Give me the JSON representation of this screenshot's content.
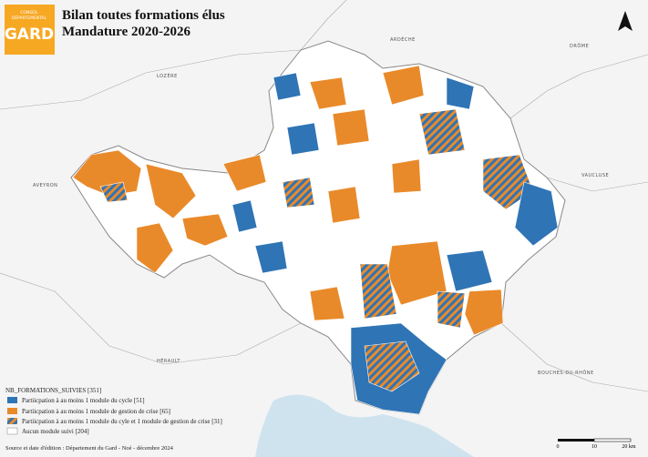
{
  "header": {
    "logo_line1": "CONSEIL",
    "logo_line2": "DÉPARTEMENTAL",
    "logo_name": "GARD",
    "title_line1": "Bilan toutes formations élus",
    "title_line2": "Mandature 2020-2026"
  },
  "neighbors": [
    "ARDÈCHE",
    "DRÔME",
    "LOZÈRE",
    "AVEYRON",
    "VAUCLUSE",
    "HÉRAULT",
    "BOUCHES-DU-RHÔNE"
  ],
  "legend": {
    "title": "NB_FORMATIONS_SUIVIES [351]",
    "items": [
      "Partiicpation à au moins 1 module du cycle [51]",
      "Partiicpation à au moins 1 module de gestion de crise [65]",
      "Partiicpation à au moins 1 module du cyle et 1 module de gestion de crise [31]",
      "Aucun module suivi [204]"
    ]
  },
  "source": "Source et date d'édition : Département du Gard - Noé - décembre 2024",
  "scale": [
    "0",
    "10",
    "20 km"
  ]
}
